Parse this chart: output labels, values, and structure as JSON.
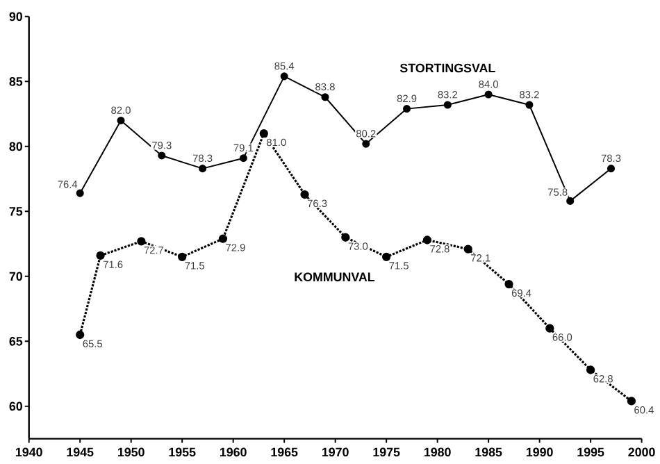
{
  "chart_data": {
    "type": "line",
    "xlim": [
      1940,
      2000
    ],
    "ylim": [
      57.5,
      90
    ],
    "xticks": [
      1940,
      1945,
      1950,
      1955,
      1960,
      1965,
      1970,
      1975,
      1980,
      1985,
      1990,
      1995,
      2000
    ],
    "yticks": [
      60,
      65,
      70,
      75,
      80,
      85,
      90
    ],
    "grid": false,
    "legend": false,
    "marker": "circle",
    "series": [
      {
        "name": "STORTINGSVAL",
        "color": "#000000",
        "line_style": "solid",
        "x": [
          1945,
          1949,
          1953,
          1957,
          1961,
          1965,
          1969,
          1973,
          1977,
          1981,
          1985,
          1989,
          1993,
          1997
        ],
        "values": [
          76.4,
          82.0,
          79.3,
          78.3,
          79.1,
          85.4,
          83.8,
          80.2,
          82.9,
          83.2,
          84.0,
          83.2,
          75.8,
          78.3
        ],
        "value_labels": [
          "76.4",
          "82.0",
          "79.3",
          "78.3",
          "79.1",
          "85.4",
          "83.8",
          "80.2",
          "82.9",
          "83.2",
          "84.0",
          "83.2",
          "75.8",
          "78.3"
        ]
      },
      {
        "name": "KOMMUNVAL",
        "color": "#000000",
        "line_style": "dotted",
        "x": [
          1945,
          1947,
          1951,
          1955,
          1959,
          1963,
          1967,
          1971,
          1975,
          1979,
          1983,
          1987,
          1991,
          1995,
          1999
        ],
        "values": [
          65.5,
          71.6,
          72.7,
          71.5,
          72.9,
          81.0,
          76.3,
          73.0,
          71.5,
          72.8,
          72.1,
          69.4,
          66.0,
          62.8,
          60.4
        ],
        "value_labels": [
          "65.5",
          "71.6",
          "72.7",
          "71.5",
          "72.9",
          "81.0",
          "76.3",
          "73.0",
          "71.5",
          "72.8",
          "72.1",
          "69.4",
          "66.0",
          "62.8",
          "60.4"
        ]
      }
    ]
  }
}
